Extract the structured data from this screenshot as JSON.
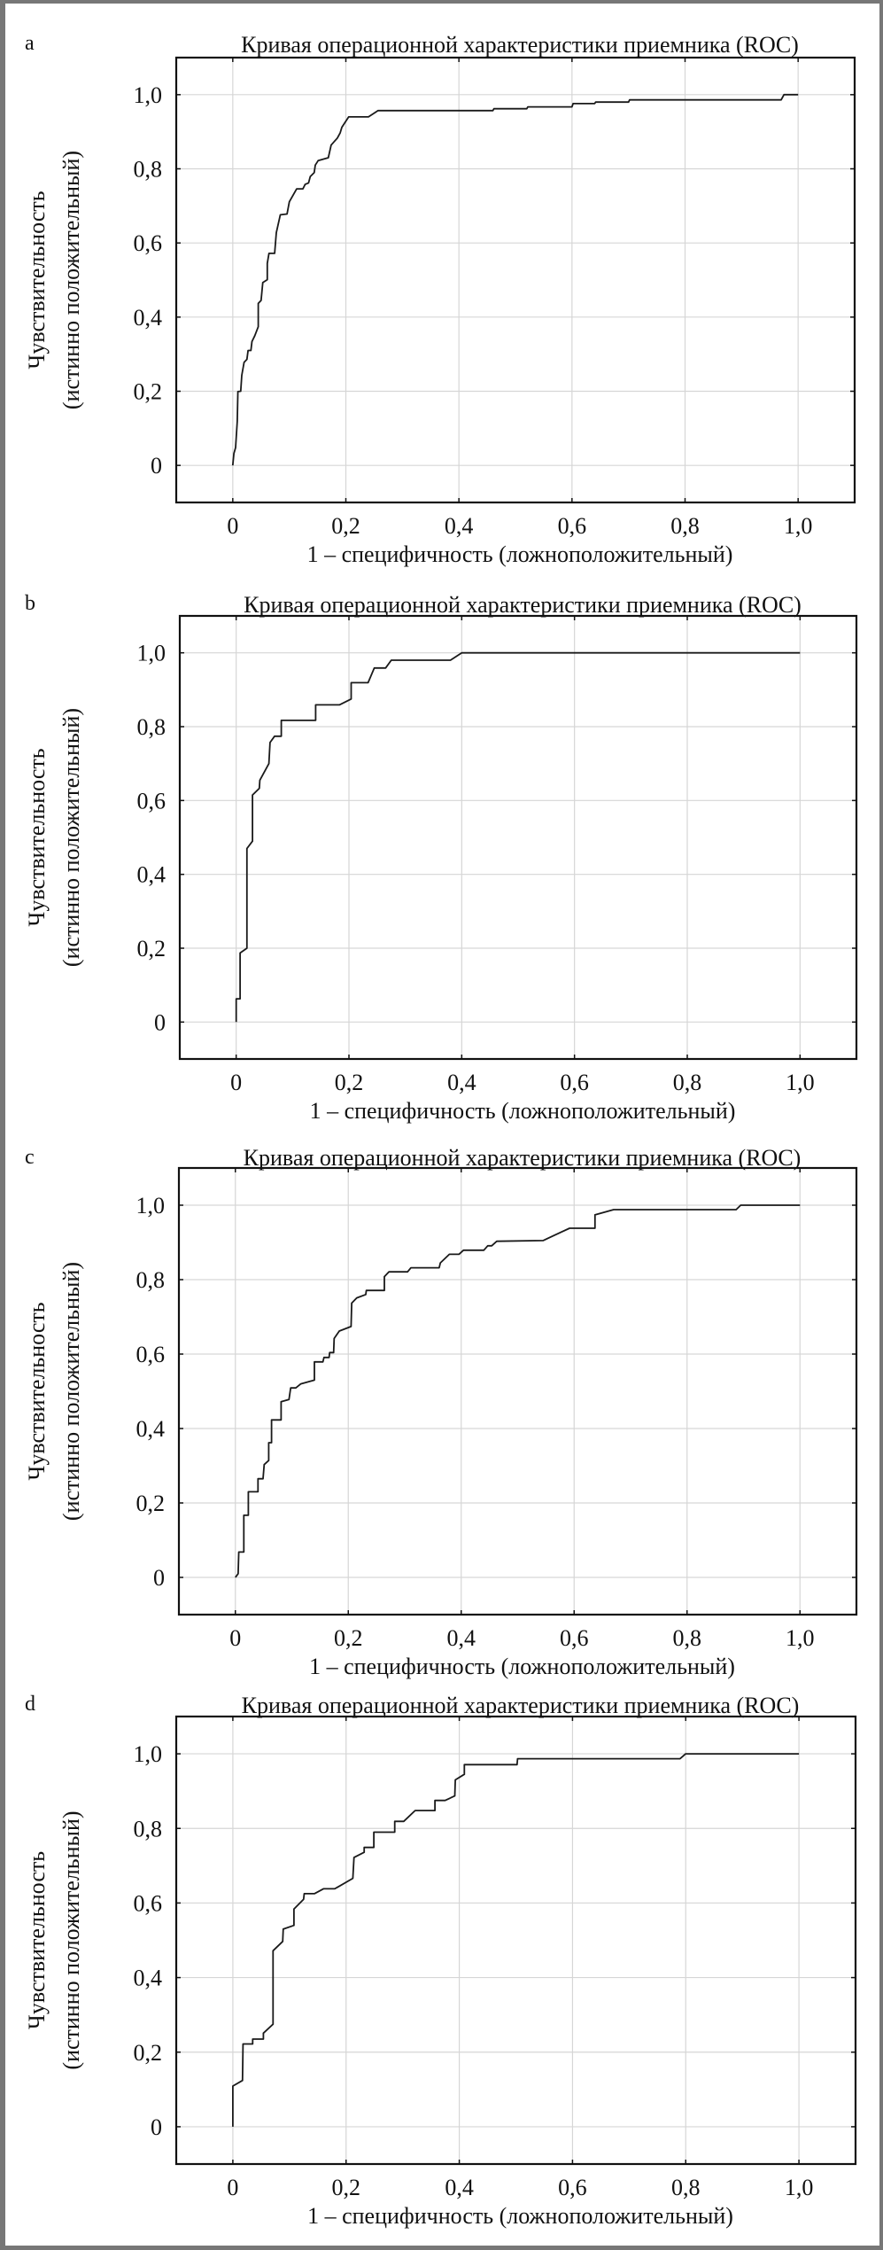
{
  "chart_data": [
    {
      "panel": "a",
      "type": "line",
      "title": "Кривая операционной характеристики приемника (ROC)",
      "xlabel": "1 – специфичность (ложноположительный)",
      "ylabel": [
        "Чувствительность",
        "(истинно положительный)"
      ],
      "xlim": [
        -0.1,
        1.1
      ],
      "ylim": [
        -0.1,
        1.1
      ],
      "xticks": [
        "0",
        "0,2",
        "0,4",
        "0,6",
        "0,8",
        "1,0"
      ],
      "yticks": [
        "0",
        "0,2",
        "0,4",
        "0,6",
        "0,8",
        "1,0"
      ],
      "grid": true,
      "points": [
        [
          0,
          0
        ],
        [
          0.002,
          0.032
        ],
        [
          0.005,
          0.048
        ],
        [
          0.008,
          0.119
        ],
        [
          0.009,
          0.199
        ],
        [
          0.014,
          0.2
        ],
        [
          0.016,
          0.243
        ],
        [
          0.02,
          0.278
        ],
        [
          0.025,
          0.286
        ],
        [
          0.027,
          0.31
        ],
        [
          0.032,
          0.31
        ],
        [
          0.034,
          0.334
        ],
        [
          0.039,
          0.35
        ],
        [
          0.045,
          0.374
        ],
        [
          0.045,
          0.437
        ],
        [
          0.05,
          0.445
        ],
        [
          0.053,
          0.493
        ],
        [
          0.061,
          0.501
        ],
        [
          0.061,
          0.545
        ],
        [
          0.064,
          0.572
        ],
        [
          0.074,
          0.572
        ],
        [
          0.077,
          0.628
        ],
        [
          0.084,
          0.676
        ],
        [
          0.096,
          0.678
        ],
        [
          0.1,
          0.711
        ],
        [
          0.113,
          0.746
        ],
        [
          0.124,
          0.746
        ],
        [
          0.128,
          0.758
        ],
        [
          0.134,
          0.762
        ],
        [
          0.137,
          0.779
        ],
        [
          0.144,
          0.79
        ],
        [
          0.146,
          0.81
        ],
        [
          0.151,
          0.822
        ],
        [
          0.169,
          0.83
        ],
        [
          0.174,
          0.864
        ],
        [
          0.185,
          0.883
        ],
        [
          0.19,
          0.897
        ],
        [
          0.193,
          0.912
        ],
        [
          0.205,
          0.94
        ],
        [
          0.24,
          0.94
        ],
        [
          0.257,
          0.957
        ],
        [
          0.46,
          0.957
        ],
        [
          0.462,
          0.962
        ],
        [
          0.52,
          0.962
        ],
        [
          0.522,
          0.967
        ],
        [
          0.6,
          0.967
        ],
        [
          0.602,
          0.976
        ],
        [
          0.64,
          0.976
        ],
        [
          0.642,
          0.98
        ],
        [
          0.7,
          0.98
        ],
        [
          0.702,
          0.986
        ],
        [
          0.97,
          0.986
        ],
        [
          0.975,
          1.0
        ],
        [
          1.0,
          1.0
        ]
      ]
    },
    {
      "panel": "b",
      "type": "line",
      "title": "Кривая операционной характеристики приемника (ROC)",
      "xlabel": "1 – специфичность (ложноположительный)",
      "ylabel": [
        "Чувствительность",
        "(истинно положительный)"
      ],
      "xlim": [
        -0.1,
        1.1
      ],
      "ylim": [
        -0.1,
        1.1
      ],
      "xticks": [
        "0",
        "0,2",
        "0,4",
        "0,6",
        "0,8",
        "1,0"
      ],
      "yticks": [
        "0",
        "0,2",
        "0,4",
        "0,6",
        "0,8",
        "1,0"
      ],
      "grid": true,
      "points": [
        [
          0,
          0
        ],
        [
          0,
          0.063
        ],
        [
          0.007,
          0.063
        ],
        [
          0.007,
          0.187
        ],
        [
          0.019,
          0.2
        ],
        [
          0.019,
          0.47
        ],
        [
          0.029,
          0.49
        ],
        [
          0.029,
          0.615
        ],
        [
          0.041,
          0.633
        ],
        [
          0.042,
          0.655
        ],
        [
          0.058,
          0.7
        ],
        [
          0.06,
          0.757
        ],
        [
          0.068,
          0.774
        ],
        [
          0.08,
          0.774
        ],
        [
          0.08,
          0.817
        ],
        [
          0.141,
          0.817
        ],
        [
          0.141,
          0.859
        ],
        [
          0.183,
          0.859
        ],
        [
          0.204,
          0.875
        ],
        [
          0.204,
          0.919
        ],
        [
          0.234,
          0.919
        ],
        [
          0.245,
          0.959
        ],
        [
          0.265,
          0.959
        ],
        [
          0.275,
          0.98
        ],
        [
          0.38,
          0.98
        ],
        [
          0.4,
          1.0
        ],
        [
          1.0,
          1.0
        ]
      ]
    },
    {
      "panel": "c",
      "type": "line",
      "title": "Кривая операционной характеристики приемника (ROC)",
      "xlabel": "1 – специфичность (ложноположительный)",
      "ylabel": [
        "Чувствительность",
        "(истинно положительный)"
      ],
      "xlim": [
        -0.1,
        1.1
      ],
      "ylim": [
        -0.1,
        1.1
      ],
      "xticks": [
        "0",
        "0,2",
        "0,4",
        "0,6",
        "0,8",
        "1,0"
      ],
      "yticks": [
        "0",
        "0,2",
        "0,4",
        "0,6",
        "0,8",
        "1,0"
      ],
      "grid": true,
      "points": [
        [
          0,
          0
        ],
        [
          0.005,
          0.01
        ],
        [
          0.006,
          0.068
        ],
        [
          0.015,
          0.068
        ],
        [
          0.015,
          0.167
        ],
        [
          0.023,
          0.167
        ],
        [
          0.023,
          0.23
        ],
        [
          0.04,
          0.23
        ],
        [
          0.04,
          0.265
        ],
        [
          0.049,
          0.265
        ],
        [
          0.051,
          0.303
        ],
        [
          0.059,
          0.314
        ],
        [
          0.059,
          0.362
        ],
        [
          0.064,
          0.362
        ],
        [
          0.064,
          0.423
        ],
        [
          0.081,
          0.423
        ],
        [
          0.081,
          0.472
        ],
        [
          0.095,
          0.478
        ],
        [
          0.098,
          0.509
        ],
        [
          0.107,
          0.509
        ],
        [
          0.116,
          0.52
        ],
        [
          0.14,
          0.53
        ],
        [
          0.14,
          0.579
        ],
        [
          0.155,
          0.579
        ],
        [
          0.157,
          0.591
        ],
        [
          0.166,
          0.591
        ],
        [
          0.167,
          0.604
        ],
        [
          0.174,
          0.604
        ],
        [
          0.175,
          0.642
        ],
        [
          0.184,
          0.662
        ],
        [
          0.205,
          0.674
        ],
        [
          0.206,
          0.737
        ],
        [
          0.215,
          0.751
        ],
        [
          0.231,
          0.76
        ],
        [
          0.232,
          0.771
        ],
        [
          0.264,
          0.771
        ],
        [
          0.264,
          0.808
        ],
        [
          0.272,
          0.821
        ],
        [
          0.305,
          0.821
        ],
        [
          0.311,
          0.832
        ],
        [
          0.361,
          0.832
        ],
        [
          0.363,
          0.845
        ],
        [
          0.379,
          0.868
        ],
        [
          0.396,
          0.868
        ],
        [
          0.404,
          0.879
        ],
        [
          0.44,
          0.879
        ],
        [
          0.447,
          0.891
        ],
        [
          0.454,
          0.891
        ],
        [
          0.463,
          0.903
        ],
        [
          0.545,
          0.905
        ],
        [
          0.592,
          0.938
        ],
        [
          0.637,
          0.938
        ],
        [
          0.637,
          0.974
        ],
        [
          0.67,
          0.988
        ],
        [
          0.887,
          0.988
        ],
        [
          0.895,
          1.0
        ],
        [
          1.0,
          1.0
        ]
      ]
    },
    {
      "panel": "d",
      "type": "line",
      "title": "Кривая операционной характеристики приемника (ROC)",
      "xlabel": "1 – специфичность (ложноположительный)",
      "ylabel": [
        "Чувствительность",
        "(истинно положительный)"
      ],
      "xlim": [
        -0.1,
        1.1
      ],
      "ylim": [
        -0.1,
        1.1
      ],
      "xticks": [
        "0",
        "0,2",
        "0,4",
        "0,6",
        "0,8",
        "1,0"
      ],
      "yticks": [
        "0",
        "0,2",
        "0,4",
        "0,6",
        "0,8",
        "1,0"
      ],
      "grid": true,
      "points": [
        [
          0,
          0
        ],
        [
          0,
          0.109
        ],
        [
          0.017,
          0.124
        ],
        [
          0.018,
          0.222
        ],
        [
          0.035,
          0.222
        ],
        [
          0.035,
          0.235
        ],
        [
          0.054,
          0.235
        ],
        [
          0.054,
          0.251
        ],
        [
          0.071,
          0.275
        ],
        [
          0.071,
          0.472
        ],
        [
          0.088,
          0.497
        ],
        [
          0.089,
          0.53
        ],
        [
          0.108,
          0.54
        ],
        [
          0.108,
          0.584
        ],
        [
          0.125,
          0.61
        ],
        [
          0.126,
          0.625
        ],
        [
          0.144,
          0.625
        ],
        [
          0.16,
          0.638
        ],
        [
          0.18,
          0.638
        ],
        [
          0.212,
          0.666
        ],
        [
          0.214,
          0.722
        ],
        [
          0.232,
          0.736
        ],
        [
          0.232,
          0.749
        ],
        [
          0.249,
          0.749
        ],
        [
          0.249,
          0.79
        ],
        [
          0.286,
          0.79
        ],
        [
          0.286,
          0.819
        ],
        [
          0.302,
          0.819
        ],
        [
          0.322,
          0.848
        ],
        [
          0.357,
          0.848
        ],
        [
          0.357,
          0.875
        ],
        [
          0.375,
          0.875
        ],
        [
          0.392,
          0.887
        ],
        [
          0.393,
          0.93
        ],
        [
          0.409,
          0.945
        ],
        [
          0.409,
          0.971
        ],
        [
          0.502,
          0.971
        ],
        [
          0.503,
          0.987
        ],
        [
          0.79,
          0.987
        ],
        [
          0.8,
          1.0
        ],
        [
          1.0,
          1.0
        ]
      ]
    }
  ]
}
